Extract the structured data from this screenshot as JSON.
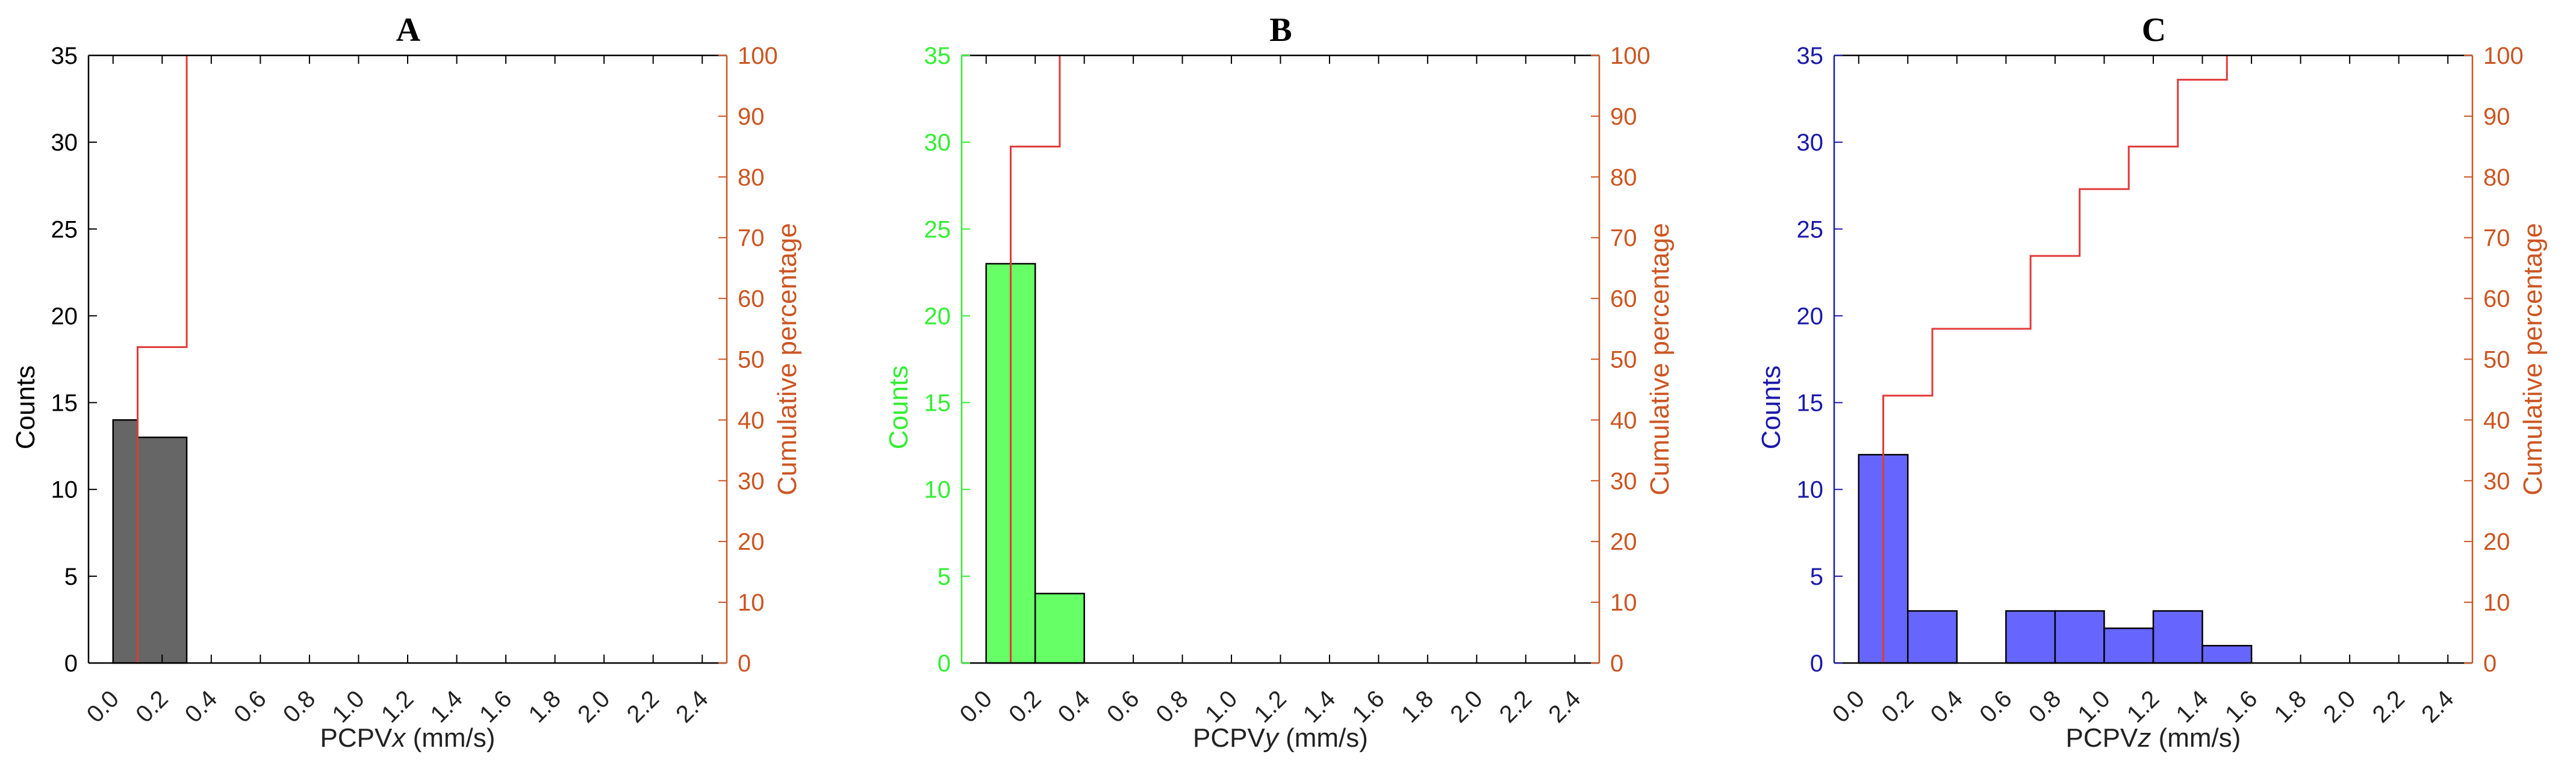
{
  "chart_data": [
    {
      "type": "bar",
      "title": "A",
      "xlabel_prefix": "PCPV",
      "xlabel_var": "x",
      "xlabel_suffix": " (mm/s)",
      "ylabel": "Counts",
      "y2label": "Cumulative percentage",
      "bar_color": "#666666",
      "left_axis_color": "#000000",
      "bin_edges": [
        0.0,
        0.1,
        0.3
      ],
      "counts": [
        14,
        13
      ],
      "cumulative_steps": [
        [
          0.1,
          0
        ],
        [
          0.1,
          52
        ],
        [
          0.3,
          52
        ],
        [
          0.3,
          100
        ]
      ],
      "xlim": [
        -0.1,
        2.5
      ],
      "ylim": [
        0,
        35
      ],
      "y2lim": [
        0,
        100
      ],
      "xticks": [
        "0.0",
        "0.2",
        "0.4",
        "0.6",
        "0.8",
        "1.0",
        "1.2",
        "1.4",
        "1.6",
        "1.8",
        "2.0",
        "2.2",
        "2.4"
      ],
      "yticks": [
        "0",
        "5",
        "10",
        "15",
        "20",
        "25",
        "30",
        "35"
      ],
      "y2ticks": [
        "0",
        "10",
        "20",
        "30",
        "40",
        "50",
        "60",
        "70",
        "80",
        "90",
        "100"
      ]
    },
    {
      "type": "bar",
      "title": "B",
      "xlabel_prefix": "PCPV",
      "xlabel_var": "y",
      "xlabel_suffix": " (mm/s)",
      "ylabel": "Counts",
      "y2label": "Cumulative percentage",
      "bar_color": "#66ff66",
      "left_axis_color": "#33ee33",
      "bin_edges": [
        0.0,
        0.2,
        0.4
      ],
      "counts": [
        23,
        4
      ],
      "cumulative_steps": [
        [
          0.1,
          0
        ],
        [
          0.1,
          85
        ],
        [
          0.3,
          85
        ],
        [
          0.3,
          100
        ]
      ],
      "xlim": [
        -0.1,
        2.5
      ],
      "ylim": [
        0,
        35
      ],
      "y2lim": [
        0,
        100
      ],
      "xticks": [
        "0.0",
        "0.2",
        "0.4",
        "0.6",
        "0.8",
        "1.0",
        "1.2",
        "1.4",
        "1.6",
        "1.8",
        "2.0",
        "2.2",
        "2.4"
      ],
      "yticks": [
        "0",
        "5",
        "10",
        "15",
        "20",
        "25",
        "30",
        "35"
      ],
      "y2ticks": [
        "0",
        "10",
        "20",
        "30",
        "40",
        "50",
        "60",
        "70",
        "80",
        "90",
        "100"
      ]
    },
    {
      "type": "bar",
      "title": "C",
      "xlabel_prefix": "PCPV",
      "xlabel_var": "z",
      "xlabel_suffix": " (mm/s)",
      "ylabel": "Counts",
      "y2label": "Cumulative percentage",
      "bar_color": "#6666ff",
      "left_axis_color": "#1a1aaa",
      "bin_edges": [
        0.0,
        0.2,
        0.4,
        0.6,
        0.8,
        1.0,
        1.2,
        1.4,
        1.6
      ],
      "counts": [
        12,
        3,
        0,
        3,
        3,
        2,
        3,
        1
      ],
      "cumulative_steps": [
        [
          0.1,
          0
        ],
        [
          0.1,
          44
        ],
        [
          0.3,
          44
        ],
        [
          0.3,
          55
        ],
        [
          0.7,
          55
        ],
        [
          0.7,
          67
        ],
        [
          0.9,
          67
        ],
        [
          0.9,
          78
        ],
        [
          1.1,
          78
        ],
        [
          1.1,
          85
        ],
        [
          1.3,
          85
        ],
        [
          1.3,
          96
        ],
        [
          1.5,
          96
        ],
        [
          1.5,
          100
        ]
      ],
      "xlim": [
        -0.1,
        2.5
      ],
      "ylim": [
        0,
        35
      ],
      "y2lim": [
        0,
        100
      ],
      "xticks": [
        "0.0",
        "0.2",
        "0.4",
        "0.6",
        "0.8",
        "1.0",
        "1.2",
        "1.4",
        "1.6",
        "1.8",
        "2.0",
        "2.2",
        "2.4"
      ],
      "yticks": [
        "0",
        "5",
        "10",
        "15",
        "20",
        "25",
        "30",
        "35"
      ],
      "y2ticks": [
        "0",
        "10",
        "20",
        "30",
        "40",
        "50",
        "60",
        "70",
        "80",
        "90",
        "100"
      ]
    }
  ],
  "colors": {
    "right_axis": "#cc5522",
    "cumulative_line": "#e03a3a",
    "bar_edge": "#000000"
  }
}
